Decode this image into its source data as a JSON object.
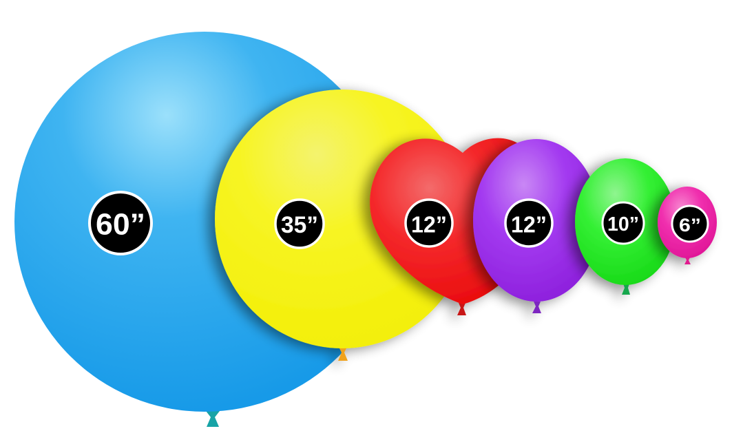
{
  "balloons": [
    {
      "id": "60in",
      "label": "60”",
      "shape": "round",
      "color": "#2fa6ef",
      "knot_color": "#17a3a6"
    },
    {
      "id": "35in",
      "label": "35”",
      "shape": "round",
      "color": "#f7f40e",
      "knot_color": "#f0a21c"
    },
    {
      "id": "12in-heart",
      "label": "12”",
      "shape": "heart",
      "color": "#f5191b",
      "knot_color": "#c81717"
    },
    {
      "id": "12in",
      "label": "12”",
      "shape": "round",
      "color": "#a12cf0",
      "knot_color": "#7d26c0"
    },
    {
      "id": "10in",
      "label": "10”",
      "shape": "round",
      "color": "#22f022",
      "knot_color": "#13a74d"
    },
    {
      "id": "6in",
      "label": "6”",
      "shape": "round",
      "color": "#f01ca9",
      "knot_color": "#e01a8e"
    }
  ]
}
